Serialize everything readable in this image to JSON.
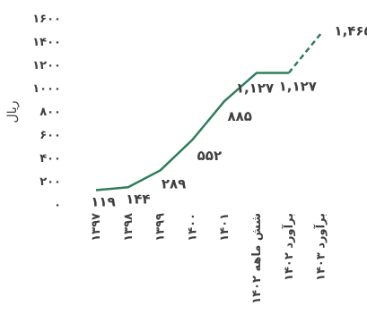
{
  "chart_data": {
    "type": "line",
    "ylabel": "ریال",
    "ylim": [
      0,
      1600
    ],
    "yticks": [
      0,
      200,
      400,
      600,
      800,
      1000,
      1200,
      1400,
      1600
    ],
    "ytick_labels": [
      "۰",
      "۲۰۰",
      "۴۰۰",
      "۶۰۰",
      "۸۰۰",
      "۱۰۰۰",
      "۱۲۰۰",
      "۱۴۰۰",
      "۱۶۰۰"
    ],
    "grid": false,
    "legend": "none",
    "categories": [
      "۱۳۹۷",
      "۱۳۹۸",
      "۱۳۹۹",
      "۱۴۰۰",
      "۱۴۰۱",
      "شش ماهه ۱۴۰۲",
      "برآورد ۱۴۰۲",
      "برآورد ۱۴۰۳"
    ],
    "values": [
      119,
      144,
      289,
      552,
      885,
      1127,
      1127,
      1465
    ],
    "data_labels": [
      "۱۱۹",
      "۱۴۴",
      "۲۸۹",
      "۵۵۲",
      "۸۸۵",
      "۱,۱۲۷",
      "۱,۱۲۷",
      "۱,۴۶۵"
    ],
    "dashed_from_index": 6,
    "line_color": "#2e7d5b"
  }
}
